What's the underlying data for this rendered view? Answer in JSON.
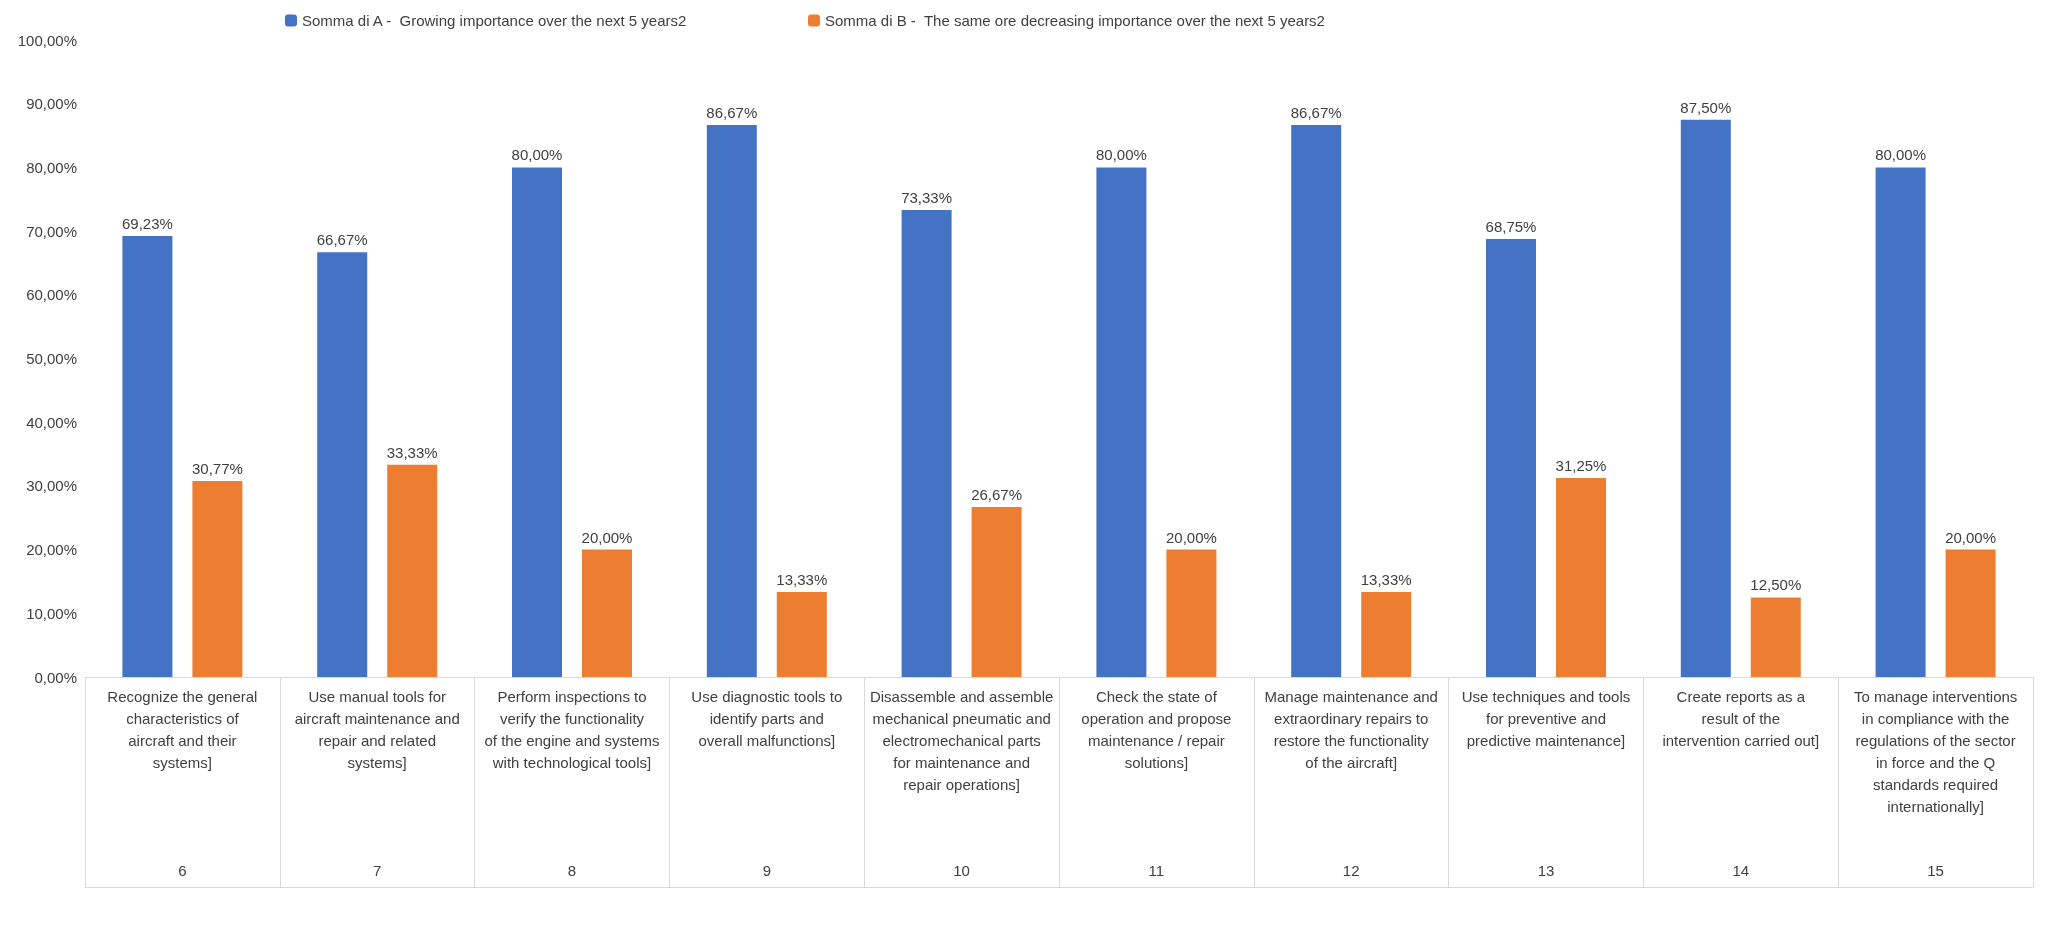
{
  "chart_data": {
    "type": "bar",
    "categories": [
      "Recognize the general characteristics of aircraft and their systems]",
      "Use manual tools for aircraft maintenance and repair and related systems]",
      "Perform inspections to verify the functionality of the engine and systems with technological tools]",
      "Use diagnostic tools to identify parts and overall malfunctions]",
      "Disassemble and assemble mechanical pneumatic and electromechanical parts for maintenance and repair operations]",
      "Check the state of operation and propose maintenance / repair solutions]",
      "Manage maintenance and extraordinary repairs to restore the functionality of the aircraft]",
      "Use techniques and tools for preventive and predictive maintenance]",
      "Create reports as a result of the intervention carried out]",
      "To manage interventions in compliance with the regulations of the sector in force and the Q standards required internationally]"
    ],
    "annotations": [
      "6",
      "7",
      "8",
      "9",
      "10",
      "11",
      "12",
      "13",
      "14",
      "15"
    ],
    "series": [
      {
        "name": "Somma di A -  Growing importance over the next 5 years2",
        "color": "#4472c4",
        "values": [
          69.23,
          66.67,
          80,
          86.67,
          73.33,
          80,
          86.67,
          68.75,
          87.5,
          80
        ],
        "value_labels": [
          "69,23%",
          "66,67%",
          "80,00%",
          "86,67%",
          "73,33%",
          "80,00%",
          "86,67%",
          "68,75%",
          "87,50%",
          "80,00%"
        ]
      },
      {
        "name": "Somma di B -  The same ore decreasing importance over the next 5 years2",
        "color": "#ed7d31",
        "values": [
          30.77,
          33.33,
          20,
          13.33,
          26.67,
          20,
          13.33,
          31.25,
          12.5,
          20
        ],
        "value_labels": [
          "30,77%",
          "33,33%",
          "20,00%",
          "13,33%",
          "26,67%",
          "20,00%",
          "13,33%",
          "31,25%",
          "12,50%",
          "20,00%"
        ]
      }
    ],
    "ylim": [
      0,
      100
    ],
    "yticks": [
      {
        "value": 0,
        "label": "0,00%"
      },
      {
        "value": 10,
        "label": "10,00%"
      },
      {
        "value": 20,
        "label": "20,00%"
      },
      {
        "value": 30,
        "label": "30,00%"
      },
      {
        "value": 40,
        "label": "40,00%"
      },
      {
        "value": 50,
        "label": "50,00%"
      },
      {
        "value": 60,
        "label": "60,00%"
      },
      {
        "value": 70,
        "label": "70,00%"
      },
      {
        "value": 80,
        "label": "80,00%"
      },
      {
        "value": 90,
        "label": "90,00%"
      },
      {
        "value": 100,
        "label": "100,00%"
      }
    ],
    "grid": false,
    "legend": "top"
  }
}
